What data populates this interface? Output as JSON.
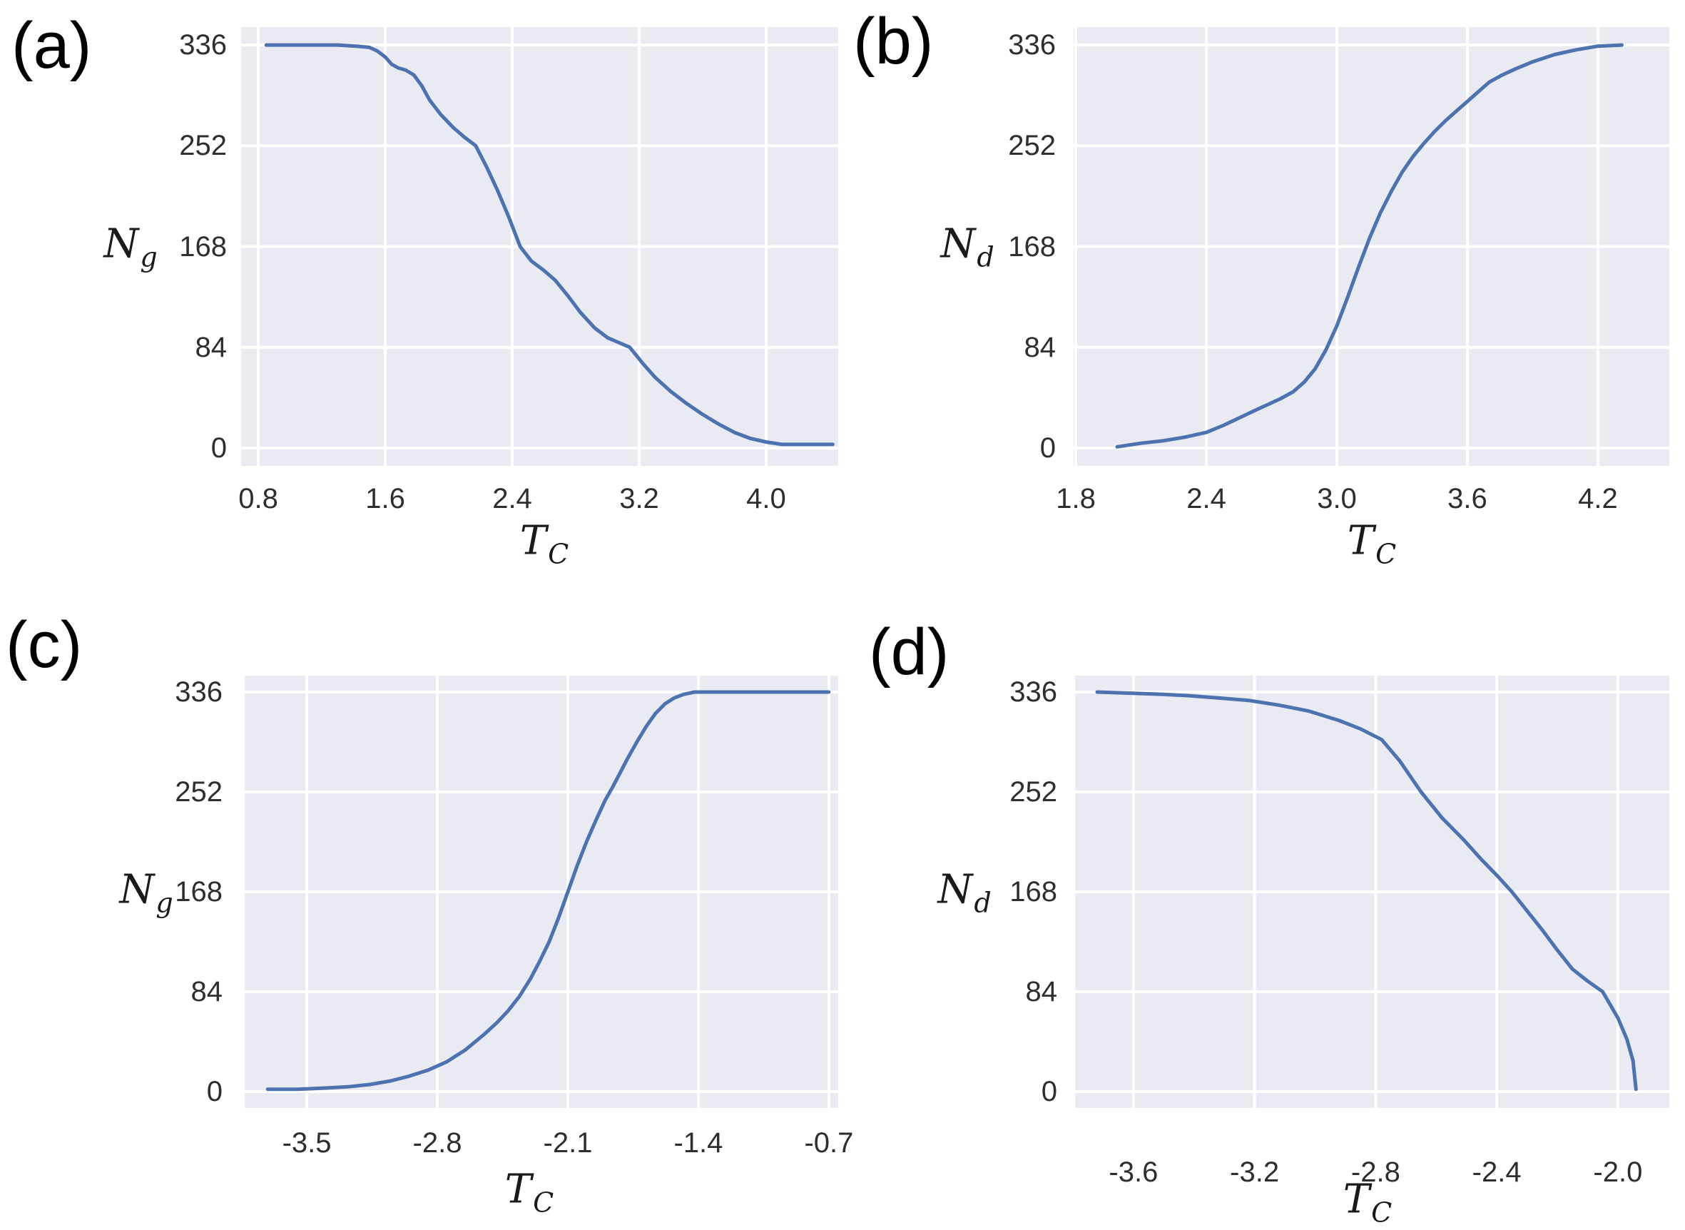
{
  "figure": {
    "background": "#ffffff",
    "panel_background": "#eaeaf2",
    "grid_color": "#ffffff",
    "line_color": "#4c72b0",
    "tick_text_color": "#2e2e2e",
    "label_text_color": "#1a1a1a"
  },
  "chart_data": [
    {
      "id": "a",
      "type": "line",
      "panel_label": "(a)",
      "xlabel": {
        "base": "T",
        "sub": "C"
      },
      "ylabel": {
        "base": "N",
        "sub": "g"
      },
      "xtick_labels": [
        "0.8",
        "1.6",
        "2.4",
        "3.2",
        "4.0"
      ],
      "xtick_values": [
        0.8,
        1.6,
        2.4,
        3.2,
        4.0
      ],
      "ytick_labels": [
        "336",
        "252",
        "168",
        "84",
        "0"
      ],
      "ytick_values": [
        336,
        252,
        168,
        84,
        0
      ],
      "xlim": [
        0.692,
        4.454
      ],
      "ylim": [
        -14.9,
        350.9
      ],
      "grid": true,
      "series": {
        "x": [
          0.85,
          1.0,
          1.15,
          1.3,
          1.42,
          1.5,
          1.55,
          1.6,
          1.64,
          1.68,
          1.73,
          1.78,
          1.83,
          1.88,
          1.95,
          2.03,
          2.1,
          2.17,
          2.24,
          2.31,
          2.38,
          2.45,
          2.52,
          2.6,
          2.67,
          2.75,
          2.83,
          2.92,
          3.0,
          3.07,
          3.14,
          3.22,
          3.3,
          3.4,
          3.5,
          3.6,
          3.7,
          3.8,
          3.9,
          4.0,
          4.1,
          4.25,
          4.42
        ],
        "y": [
          336,
          336,
          336,
          336,
          335,
          334,
          331,
          326,
          320,
          317,
          315,
          311,
          302,
          290,
          278,
          267,
          259,
          252,
          234,
          214,
          192,
          168,
          156,
          148,
          140,
          127,
          113,
          100,
          92,
          88,
          84,
          71,
          59,
          47,
          37,
          28,
          20,
          13,
          8,
          5,
          3,
          3,
          3
        ]
      }
    },
    {
      "id": "b",
      "type": "line",
      "panel_label": "(b)",
      "xlabel": {
        "base": "T",
        "sub": "C"
      },
      "ylabel": {
        "base": "N",
        "sub": "d"
      },
      "xtick_labels": [
        "1.8",
        "2.4",
        "3.0",
        "3.6",
        "4.2"
      ],
      "xtick_values": [
        1.8,
        2.4,
        3.0,
        3.6,
        4.2
      ],
      "ytick_labels": [
        "336",
        "252",
        "168",
        "84",
        "0"
      ],
      "ytick_values": [
        336,
        252,
        168,
        84,
        0
      ],
      "xlim": [
        1.79,
        4.528
      ],
      "ylim": [
        -14.9,
        350.9
      ],
      "grid": true,
      "series": {
        "x": [
          1.99,
          2.1,
          2.2,
          2.3,
          2.4,
          2.48,
          2.55,
          2.62,
          2.68,
          2.74,
          2.8,
          2.85,
          2.9,
          2.95,
          3.0,
          3.05,
          3.1,
          3.15,
          3.2,
          3.25,
          3.3,
          3.35,
          3.4,
          3.45,
          3.5,
          3.55,
          3.6,
          3.65,
          3.7,
          3.76,
          3.82,
          3.9,
          4.0,
          4.1,
          4.2,
          4.31
        ],
        "y": [
          1,
          4,
          6,
          9,
          13,
          19,
          25,
          31,
          36,
          41,
          47,
          55,
          66,
          82,
          102,
          126,
          151,
          175,
          196,
          214,
          230,
          243,
          254,
          264,
          273,
          281,
          289,
          297,
          305,
          311,
          316,
          322,
          328,
          332,
          335,
          336
        ]
      }
    },
    {
      "id": "c",
      "type": "line",
      "panel_label": "(c)",
      "xlabel": {
        "base": "T",
        "sub": "C"
      },
      "ylabel": {
        "base": "N",
        "sub": "g"
      },
      "xtick_labels": [
        "-3.5",
        "-2.8",
        "-2.1",
        "-1.4",
        "-0.7"
      ],
      "xtick_values": [
        -3.5,
        -2.8,
        -2.1,
        -1.4,
        -0.7
      ],
      "ytick_labels": [
        "336",
        "252",
        "168",
        "84",
        "0"
      ],
      "ytick_values": [
        336,
        252,
        168,
        84,
        0
      ],
      "xlim": [
        -3.833,
        -0.65
      ],
      "ylim": [
        -13.8,
        349.8
      ],
      "grid": true,
      "series": {
        "x": [
          -3.71,
          -3.55,
          -3.4,
          -3.28,
          -3.16,
          -3.05,
          -2.95,
          -2.85,
          -2.75,
          -2.65,
          -2.55,
          -2.48,
          -2.42,
          -2.36,
          -2.3,
          -2.25,
          -2.2,
          -2.15,
          -2.1,
          -2.05,
          -2.0,
          -1.95,
          -1.9,
          -1.86,
          -1.82,
          -1.78,
          -1.73,
          -1.68,
          -1.63,
          -1.58,
          -1.53,
          -1.48,
          -1.42,
          -1.3,
          -1.1,
          -0.9,
          -0.7
        ],
        "y": [
          2,
          2,
          3,
          4,
          6,
          9,
          13,
          18,
          25,
          35,
          48,
          58,
          68,
          80,
          95,
          110,
          126,
          146,
          168,
          190,
          210,
          228,
          245,
          256,
          268,
          280,
          294,
          307,
          318,
          326,
          331,
          334,
          336,
          336,
          336,
          336,
          336
        ]
      }
    },
    {
      "id": "d",
      "type": "line",
      "panel_label": "(d)",
      "xlabel": {
        "base": "T",
        "sub": "C"
      },
      "ylabel": {
        "base": "N",
        "sub": "d"
      },
      "xtick_labels": [
        "-3.6",
        "-3.2",
        "-2.8",
        "-2.4",
        "-2.0"
      ],
      "xtick_values": [
        -3.6,
        -3.2,
        -2.8,
        -2.4,
        -2.0
      ],
      "ytick_labels": [
        "336",
        "252",
        "168",
        "84",
        "0"
      ],
      "ytick_values": [
        336,
        252,
        168,
        84,
        0
      ],
      "xlim": [
        -3.793,
        -1.83
      ],
      "ylim": [
        -13.8,
        349.8
      ],
      "grid": true,
      "series": {
        "x": [
          -3.72,
          -3.6,
          -3.5,
          -3.42,
          -3.32,
          -3.22,
          -3.12,
          -3.02,
          -2.92,
          -2.85,
          -2.78,
          -2.72,
          -2.65,
          -2.58,
          -2.51,
          -2.45,
          -2.4,
          -2.35,
          -2.3,
          -2.25,
          -2.2,
          -2.15,
          -2.1,
          -2.05,
          -2.0,
          -1.97,
          -1.95,
          -1.94
        ],
        "y": [
          336,
          335,
          334,
          333,
          331,
          329,
          325,
          320,
          312,
          305,
          296,
          278,
          252,
          230,
          212,
          195,
          182,
          168,
          152,
          136,
          119,
          103,
          93,
          84,
          62,
          44,
          26,
          2
        ]
      }
    }
  ]
}
